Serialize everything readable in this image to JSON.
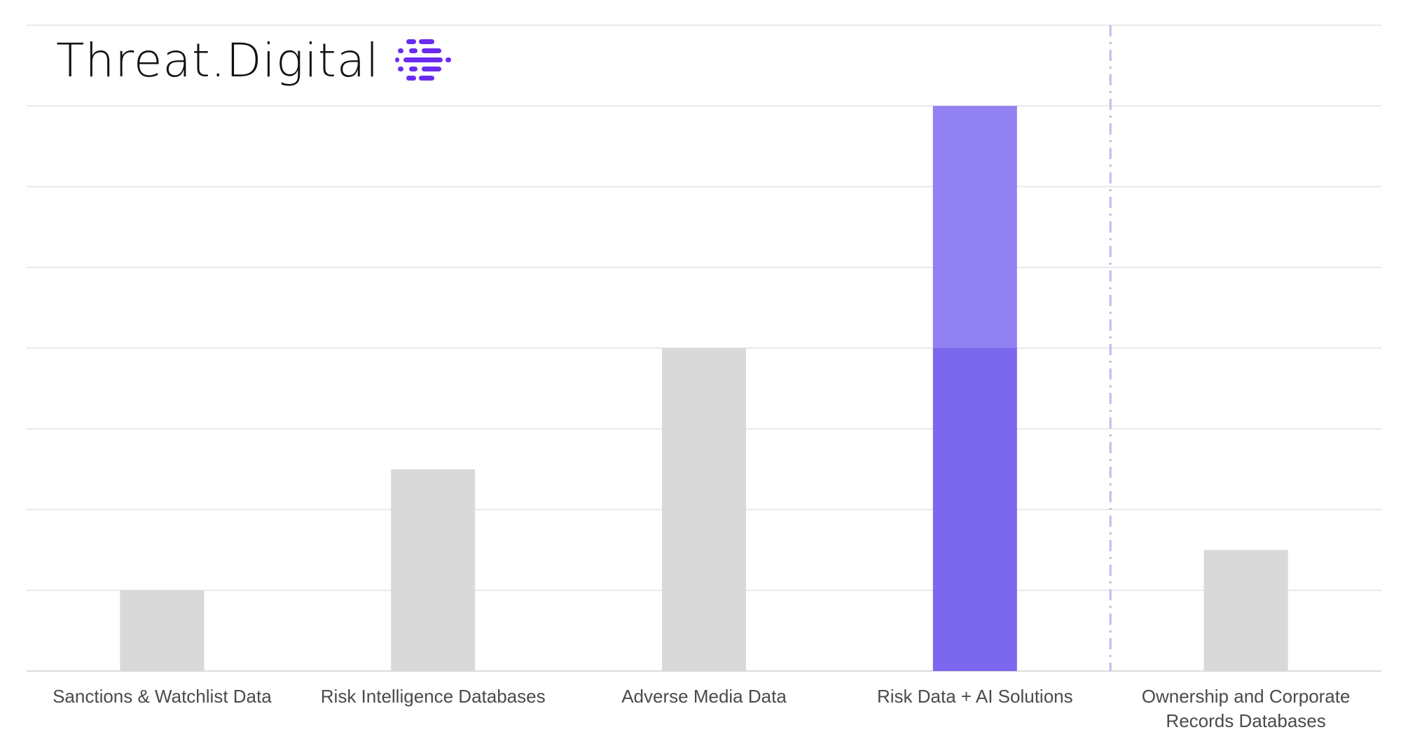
{
  "logo": {
    "text": "Threat.Digital",
    "icon": "stacked-bars-logo-icon",
    "icon_color": "#6a2bf0"
  },
  "chart_data": {
    "type": "bar",
    "categories": [
      "Sanctions & Watchlist Data",
      "Risk Intelligence Databases",
      "Adverse Media Data",
      "Risk Data + AI Solutions",
      "Ownership and Corporate\nRecords Databases"
    ],
    "series": [
      {
        "values": [
          1,
          2.5,
          4,
          4,
          1.5
        ],
        "colors": [
          "#d9d9d9",
          "#d9d9d9",
          "#d9d9d9",
          "#7b68ee",
          "#d9d9d9"
        ]
      },
      {
        "values": [
          0,
          0,
          0,
          3,
          0
        ],
        "colors": [
          "#9281f2",
          "#9281f2",
          "#9281f2",
          "#9281f2",
          "#9281f2"
        ]
      }
    ],
    "stacked": true,
    "ylim": [
      0,
      8
    ],
    "grid": true,
    "y_ticks_shown": false,
    "divider": {
      "after_category_index": 3,
      "style": "dash-dot",
      "color": "#c4b8ef"
    },
    "gridline_color": "#e2e2e2",
    "axis_color": "#dcdcdc",
    "tick_label_color": "#4a4a4a"
  }
}
